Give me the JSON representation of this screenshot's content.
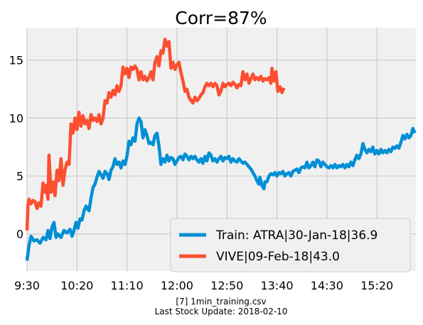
{
  "chart_data": {
    "type": "line",
    "title": "Corr=87%",
    "x_ticks": [
      "9:30",
      "10:20",
      "11:10",
      "12:00",
      "12:50",
      "13:40",
      "14:30",
      "15:20"
    ],
    "x_tick_minutes": [
      570,
      620,
      670,
      720,
      770,
      820,
      870,
      920
    ],
    "xlim": [
      570,
      959
    ],
    "y_ticks": [
      0,
      5,
      10,
      15
    ],
    "ylim": [
      -3.2,
      17.8
    ],
    "grid": true,
    "legend_position": "bottom-right",
    "caption_lines": [
      "[7] 1min_training.csv",
      "Last Stock Update: 2018-02-10"
    ],
    "series": [
      {
        "name": "Train: ATRA|30-Jan-18|36.9",
        "color": "#008fd5",
        "points": [
          [
            570,
            -2.3
          ],
          [
            572,
            -1.0
          ],
          [
            574,
            -0.2
          ],
          [
            577,
            -0.6
          ],
          [
            580,
            -0.5
          ],
          [
            583,
            -0.8
          ],
          [
            586,
            -0.3
          ],
          [
            589,
            -0.5
          ],
          [
            591,
            0.3
          ],
          [
            593,
            -0.4
          ],
          [
            595,
            0.6
          ],
          [
            597,
            1.0
          ],
          [
            599,
            -0.3
          ],
          [
            601,
            0.0
          ],
          [
            604,
            -0.3
          ],
          [
            607,
            0.3
          ],
          [
            610,
            0.1
          ],
          [
            613,
            0.4
          ],
          [
            615,
            -0.2
          ],
          [
            617,
            0.3
          ],
          [
            619,
            1.0
          ],
          [
            621,
            0.5
          ],
          [
            623,
            1.3
          ],
          [
            625,
            1.2
          ],
          [
            627,
            2.0
          ],
          [
            629,
            2.4
          ],
          [
            632,
            2.0
          ],
          [
            634,
            3.1
          ],
          [
            636,
            4.0
          ],
          [
            638,
            4.3
          ],
          [
            640,
            4.9
          ],
          [
            642,
            5.4
          ],
          [
            644,
            5.1
          ],
          [
            646,
            4.8
          ],
          [
            648,
            5.4
          ],
          [
            650,
            5.2
          ],
          [
            652,
            4.7
          ],
          [
            654,
            5.5
          ],
          [
            656,
            5.8
          ],
          [
            658,
            6.5
          ],
          [
            660,
            6.0
          ],
          [
            662,
            6.2
          ],
          [
            664,
            5.7
          ],
          [
            666,
            6.3
          ],
          [
            668,
            6.0
          ],
          [
            670,
            6.7
          ],
          [
            672,
            8.0
          ],
          [
            674,
            7.7
          ],
          [
            676,
            8.3
          ],
          [
            678,
            8.0
          ],
          [
            680,
            9.5
          ],
          [
            682,
            10.0
          ],
          [
            684,
            9.7
          ],
          [
            686,
            8.3
          ],
          [
            688,
            9.0
          ],
          [
            690,
            8.5
          ],
          [
            692,
            7.8
          ],
          [
            694,
            7.9
          ],
          [
            696,
            7.7
          ],
          [
            698,
            8.5
          ],
          [
            700,
            8.7
          ],
          [
            702,
            7.6
          ],
          [
            704,
            6.0
          ],
          [
            706,
            6.5
          ],
          [
            708,
            6.2
          ],
          [
            710,
            6.8
          ],
          [
            712,
            6.3
          ],
          [
            714,
            6.6
          ],
          [
            716,
            6.5
          ],
          [
            718,
            6.0
          ],
          [
            720,
            6.3
          ],
          [
            722,
            6.6
          ],
          [
            724,
            6.7
          ],
          [
            726,
            6.4
          ],
          [
            728,
            6.9
          ],
          [
            730,
            6.7
          ],
          [
            732,
            6.4
          ],
          [
            734,
            6.7
          ],
          [
            736,
            6.5
          ],
          [
            738,
            6.7
          ],
          [
            740,
            6.4
          ],
          [
            742,
            6.2
          ],
          [
            744,
            6.5
          ],
          [
            746,
            6.1
          ],
          [
            748,
            6.7
          ],
          [
            750,
            6.3
          ],
          [
            752,
            7.0
          ],
          [
            754,
            6.8
          ],
          [
            756,
            6.3
          ],
          [
            758,
            6.5
          ],
          [
            760,
            6.2
          ],
          [
            762,
            6.5
          ],
          [
            764,
            6.7
          ],
          [
            766,
            6.3
          ],
          [
            768,
            6.6
          ],
          [
            770,
            6.5
          ],
          [
            772,
            6.7
          ],
          [
            774,
            6.2
          ],
          [
            776,
            6.5
          ],
          [
            778,
            6.3
          ],
          [
            780,
            6.2
          ],
          [
            782,
            6.5
          ],
          [
            784,
            6.3
          ],
          [
            786,
            6.1
          ],
          [
            788,
            6.2
          ],
          [
            790,
            6.0
          ],
          [
            792,
            5.8
          ],
          [
            794,
            5.6
          ],
          [
            796,
            5.3
          ],
          [
            798,
            5.0
          ],
          [
            800,
            4.6
          ],
          [
            802,
            4.3
          ],
          [
            803,
            4.9
          ],
          [
            805,
            4.2
          ],
          [
            807,
            3.9
          ],
          [
            808,
            4.5
          ],
          [
            810,
            4.5
          ],
          [
            812,
            5.0
          ],
          [
            814,
            5.2
          ],
          [
            816,
            5.1
          ],
          [
            818,
            5.3
          ],
          [
            820,
            5.0
          ],
          [
            822,
            5.3
          ],
          [
            824,
            5.2
          ],
          [
            826,
            5.4
          ],
          [
            828,
            5.0
          ],
          [
            830,
            5.2
          ],
          [
            832,
            5.3
          ],
          [
            834,
            5.0
          ],
          [
            836,
            5.4
          ],
          [
            838,
            5.5
          ],
          [
            840,
            5.6
          ],
          [
            842,
            5.3
          ],
          [
            844,
            5.7
          ],
          [
            846,
            5.8
          ],
          [
            848,
            5.7
          ],
          [
            850,
            6.2
          ],
          [
            852,
            5.7
          ],
          [
            854,
            5.9
          ],
          [
            856,
            6.2
          ],
          [
            858,
            5.8
          ],
          [
            860,
            6.4
          ],
          [
            862,
            6.3
          ],
          [
            864,
            5.8
          ],
          [
            866,
            6.2
          ],
          [
            868,
            6.0
          ],
          [
            870,
            5.8
          ],
          [
            872,
            5.7
          ],
          [
            874,
            5.9
          ],
          [
            876,
            5.7
          ],
          [
            878,
            6.0
          ],
          [
            880,
            5.7
          ],
          [
            882,
            5.9
          ],
          [
            884,
            5.8
          ],
          [
            886,
            6.0
          ],
          [
            888,
            5.7
          ],
          [
            890,
            6.0
          ],
          [
            892,
            5.8
          ],
          [
            894,
            6.2
          ],
          [
            896,
            5.9
          ],
          [
            898,
            6.4
          ],
          [
            900,
            6.8
          ],
          [
            902,
            6.5
          ],
          [
            904,
            6.9
          ],
          [
            906,
            7.8
          ],
          [
            908,
            7.3
          ],
          [
            910,
            7.0
          ],
          [
            912,
            7.3
          ],
          [
            914,
            7.1
          ],
          [
            916,
            7.5
          ],
          [
            918,
            6.9
          ],
          [
            920,
            7.2
          ],
          [
            922,
            6.9
          ],
          [
            924,
            7.3
          ],
          [
            926,
            7.0
          ],
          [
            928,
            7.2
          ],
          [
            930,
            7.0
          ],
          [
            932,
            7.3
          ],
          [
            934,
            7.1
          ],
          [
            936,
            7.5
          ],
          [
            938,
            7.4
          ],
          [
            940,
            7.6
          ],
          [
            942,
            7.4
          ],
          [
            944,
            7.9
          ],
          [
            946,
            8.5
          ],
          [
            948,
            8.2
          ],
          [
            950,
            8.6
          ],
          [
            952,
            8.3
          ],
          [
            954,
            8.5
          ],
          [
            956,
            9.1
          ],
          [
            958,
            8.7
          ]
        ]
      },
      {
        "name": "VIVE|09-Feb-18|43.0",
        "color": "#fc4f30",
        "points": [
          [
            570,
            0.3
          ],
          [
            571,
            2.5
          ],
          [
            572,
            3.0
          ],
          [
            574,
            2.6
          ],
          [
            576,
            2.9
          ],
          [
            578,
            2.8
          ],
          [
            580,
            2.2
          ],
          [
            582,
            2.7
          ],
          [
            584,
            2.4
          ],
          [
            586,
            4.4
          ],
          [
            588,
            3.6
          ],
          [
            589,
            4.2
          ],
          [
            591,
            3.0
          ],
          [
            592,
            6.8
          ],
          [
            594,
            3.6
          ],
          [
            596,
            4.5
          ],
          [
            598,
            3.3
          ],
          [
            600,
            5.5
          ],
          [
            602,
            4.6
          ],
          [
            604,
            6.5
          ],
          [
            606,
            4.2
          ],
          [
            608,
            5.5
          ],
          [
            610,
            6.2
          ],
          [
            612,
            6.0
          ],
          [
            614,
            9.5
          ],
          [
            616,
            8.7
          ],
          [
            618,
            10.0
          ],
          [
            620,
            9.0
          ],
          [
            622,
            10.5
          ],
          [
            624,
            9.3
          ],
          [
            626,
            10.2
          ],
          [
            628,
            9.5
          ],
          [
            630,
            9.8
          ],
          [
            632,
            9.1
          ],
          [
            634,
            10.3
          ],
          [
            636,
            9.8
          ],
          [
            638,
            10.0
          ],
          [
            640,
            9.7
          ],
          [
            642,
            10.3
          ],
          [
            644,
            9.5
          ],
          [
            646,
            10.0
          ],
          [
            648,
            11.5
          ],
          [
            650,
            11.3
          ],
          [
            652,
            12.2
          ],
          [
            654,
            11.8
          ],
          [
            656,
            12.4
          ],
          [
            658,
            12.0
          ],
          [
            660,
            12.8
          ],
          [
            662,
            12.3
          ],
          [
            664,
            12.8
          ],
          [
            666,
            14.4
          ],
          [
            668,
            13.8
          ],
          [
            670,
            14.3
          ],
          [
            672,
            13.5
          ],
          [
            674,
            14.4
          ],
          [
            676,
            14.2
          ],
          [
            678,
            14.5
          ],
          [
            680,
            14.2
          ],
          [
            682,
            13.3
          ],
          [
            684,
            14.0
          ],
          [
            686,
            13.3
          ],
          [
            688,
            13.6
          ],
          [
            690,
            13.2
          ],
          [
            692,
            13.5
          ],
          [
            694,
            14.0
          ],
          [
            696,
            13.3
          ],
          [
            698,
            14.8
          ],
          [
            700,
            15.3
          ],
          [
            702,
            14.5
          ],
          [
            704,
            15.8
          ],
          [
            706,
            15.6
          ],
          [
            708,
            16.8
          ],
          [
            710,
            16.2
          ],
          [
            712,
            16.6
          ],
          [
            714,
            14.3
          ],
          [
            716,
            14.8
          ],
          [
            718,
            14.2
          ],
          [
            720,
            14.6
          ],
          [
            722,
            14.8
          ],
          [
            724,
            13.9
          ],
          [
            726,
            13.2
          ],
          [
            728,
            12.3
          ],
          [
            730,
            12.5
          ],
          [
            732,
            11.8
          ],
          [
            734,
            11.5
          ],
          [
            736,
            11.3
          ],
          [
            738,
            11.8
          ],
          [
            740,
            11.5
          ],
          [
            742,
            11.7
          ],
          [
            744,
            12.0
          ],
          [
            746,
            12.2
          ],
          [
            748,
            12.7
          ],
          [
            750,
            13.0
          ],
          [
            752,
            12.8
          ],
          [
            754,
            13.0
          ],
          [
            756,
            12.7
          ],
          [
            758,
            13.0
          ],
          [
            760,
            12.8
          ],
          [
            762,
            12.0
          ],
          [
            764,
            12.3
          ],
          [
            766,
            13.0
          ],
          [
            768,
            12.7
          ],
          [
            770,
            12.9
          ],
          [
            772,
            13.0
          ],
          [
            774,
            12.8
          ],
          [
            776,
            13.1
          ],
          [
            778,
            12.9
          ],
          [
            780,
            12.6
          ],
          [
            782,
            12.9
          ],
          [
            784,
            12.8
          ],
          [
            786,
            14.0
          ],
          [
            788,
            13.3
          ],
          [
            790,
            13.8
          ],
          [
            792,
            13.0
          ],
          [
            794,
            13.4
          ],
          [
            796,
            13.8
          ],
          [
            798,
            13.3
          ],
          [
            800,
            13.5
          ],
          [
            802,
            13.3
          ],
          [
            804,
            13.6
          ],
          [
            806,
            13.2
          ],
          [
            808,
            13.4
          ],
          [
            810,
            13.3
          ],
          [
            812,
            13.5
          ],
          [
            814,
            13.0
          ],
          [
            815,
            14.3
          ],
          [
            817,
            13.2
          ],
          [
            819,
            14.0
          ],
          [
            821,
            12.3
          ],
          [
            823,
            12.7
          ],
          [
            825,
            12.2
          ],
          [
            827,
            12.6
          ]
        ]
      }
    ]
  }
}
